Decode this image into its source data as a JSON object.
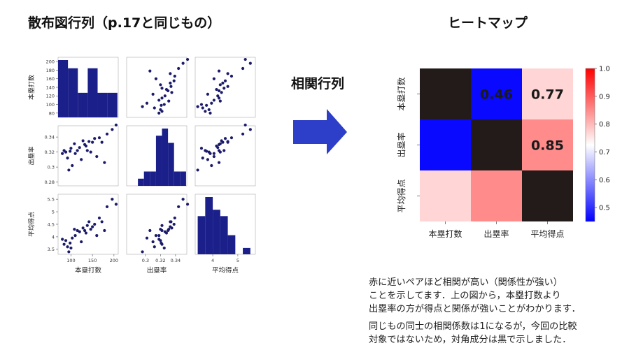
{
  "titles": {
    "scatter_matrix": "散布図行列（p.17と同じもの）",
    "heatmap": "ヒートマップ",
    "arrow_label": "相関行列"
  },
  "notes": [
    "赤に近いペアほど相関が高い（関係性が強い）\nことを示してます．上の図から，本塁打数より\n出塁率の方が得点と関係が強いことがわかります．",
    "同じもの同士の相関係数は1になるが，今回の比較\n対象ではないため，対角成分は黒で示しました．"
  ],
  "colors": {
    "dot": "#1b1b6b",
    "hist": "#1a1f8a",
    "diag": "#231a1a",
    "arrow": "#2d3ec8"
  },
  "chart_data": [
    {
      "type": "scatter",
      "title": "散布図行列（p.17と同じもの）",
      "variables": [
        "本塁打数",
        "出塁率",
        "平均得点"
      ],
      "axes": {
        "本塁打数": {
          "ticks": [
            80,
            100,
            120,
            140,
            160,
            180,
            200
          ],
          "xticks": [
            100,
            150,
            200
          ],
          "range": [
            70,
            210
          ]
        },
        "出塁率": {
          "ticks": [
            0.28,
            0.3,
            0.32,
            0.34
          ],
          "xticks": [
            0.3,
            0.32,
            0.34
          ],
          "range": [
            0.275,
            0.355
          ]
        },
        "平均得点": {
          "ticks": [
            3.5,
            4.0,
            4.5,
            5.0,
            5.5
          ],
          "xticks": [
            4,
            5
          ],
          "range": [
            3.3,
            5.7
          ]
        }
      },
      "points": [
        [
          80,
          0.318,
          3.9
        ],
        [
          84,
          0.322,
          3.7
        ],
        [
          88,
          0.32,
          3.85
        ],
        [
          92,
          0.312,
          3.6
        ],
        [
          95,
          0.296,
          3.4
        ],
        [
          98,
          0.321,
          3.75
        ],
        [
          100,
          0.325,
          3.55
        ],
        [
          103,
          0.302,
          3.95
        ],
        [
          108,
          0.331,
          4.3
        ],
        [
          110,
          0.318,
          4.05
        ],
        [
          115,
          0.322,
          4.25
        ],
        [
          120,
          0.326,
          4.2
        ],
        [
          124,
          0.31,
          3.8
        ],
        [
          128,
          0.335,
          4.35
        ],
        [
          132,
          0.33,
          4.25
        ],
        [
          135,
          0.328,
          4.15
        ],
        [
          138,
          0.322,
          4.45
        ],
        [
          142,
          0.334,
          4.6
        ],
        [
          146,
          0.32,
          4.3
        ],
        [
          150,
          0.333,
          4.4
        ],
        [
          155,
          0.338,
          4.5
        ],
        [
          160,
          0.314,
          4.05
        ],
        [
          166,
          0.339,
          4.75
        ],
        [
          172,
          0.333,
          4.6
        ],
        [
          178,
          0.306,
          4.25
        ],
        [
          184,
          0.344,
          5.2
        ],
        [
          196,
          0.35,
          5.5
        ],
        [
          205,
          0.356,
          5.3
        ]
      ],
      "histograms": {
        "本塁打数": {
          "bins": [
            70,
            93,
            116,
            139,
            162,
            185,
            208
          ],
          "counts": [
            7,
            6,
            3,
            6,
            3,
            3
          ]
        },
        "出塁率": {
          "bins": [
            0.29,
            0.298,
            0.306,
            0.314,
            0.322,
            0.33,
            0.338,
            0.346,
            0.354
          ],
          "counts": [
            1,
            2,
            2,
            7,
            8,
            6,
            2,
            2
          ]
        },
        "平均得点": {
          "bins": [
            3.4,
            3.7,
            4.0,
            4.3,
            4.6,
            4.9,
            5.2,
            5.5
          ],
          "counts": [
            6,
            9,
            7,
            6,
            3,
            0,
            1
          ]
        }
      }
    },
    {
      "type": "heatmap",
      "title": "ヒートマップ",
      "rows": [
        "本塁打数",
        "出塁率",
        "平均得点"
      ],
      "columns": [
        "本塁打数",
        "出塁率",
        "平均得点"
      ],
      "values": [
        [
          null,
          0.46,
          0.77
        ],
        [
          0.46,
          null,
          0.85
        ],
        [
          0.77,
          0.85,
          null
        ]
      ],
      "annotations": [
        [
          "",
          "0.46",
          "0.77"
        ],
        [
          "",
          "",
          "0.85"
        ],
        [
          "",
          "",
          ""
        ]
      ],
      "colorbar": {
        "range": [
          0.45,
          1.0
        ],
        "ticks": [
          "0.5",
          "0.6",
          "0.7",
          "0.8",
          "0.9",
          "1.0"
        ],
        "colormap": "bwr"
      },
      "diagonal_color": "#231a1a"
    }
  ]
}
